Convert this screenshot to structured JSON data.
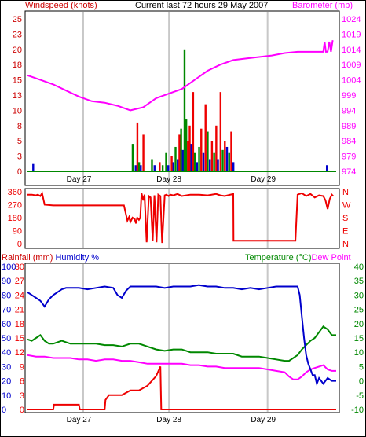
{
  "header": {
    "left_title": "Windspeed (knots)",
    "center_title": "Current last 72 hours 29 May 2007",
    "right_title": "Barometer (mb)"
  },
  "colors": {
    "windspeed_label": "#cc0000",
    "barometer": "#ff00ff",
    "wind_bars_red": "#ee0000",
    "wind_bars_green": "#008800",
    "wind_bars_blue": "#0000cc",
    "wind_base": "#008800",
    "direction": "#ee0000",
    "humidity": "#0000cc",
    "temperature": "#008800",
    "dewpoint": "#ff00ff",
    "rainfall": "#ee0000",
    "grid": "#c8c8c8",
    "frame": "#000000"
  },
  "day_labels": [
    "Day 27",
    "Day 28",
    "Day 29"
  ],
  "chart_data": [
    {
      "type": "line",
      "title": "",
      "ylabel_left": "Windspeed (knots)",
      "ylabel_right": "Barometer (mb)",
      "left_ticks": [
        "0",
        "3",
        "5",
        "8",
        "10",
        "13",
        "15",
        "18",
        "20",
        "23",
        "25"
      ],
      "right_ticks": [
        "974",
        "979",
        "984",
        "989",
        "994",
        "999",
        "1004",
        "1009",
        "1014",
        "1019",
        "1024"
      ],
      "ylim_left": [
        0,
        25
      ],
      "ylim_right": [
        974,
        1024
      ],
      "xlim_hours": [
        0,
        72
      ],
      "grid": "vertical",
      "barometer": {
        "name": "Barometer",
        "x": [
          0,
          3,
          6,
          9,
          12,
          15,
          18,
          21,
          24,
          27,
          30,
          33,
          36,
          39,
          42,
          45,
          48,
          51,
          54,
          57,
          60,
          63,
          66,
          68,
          69,
          69.3,
          69.6,
          70,
          70.4,
          70.8,
          71.2
        ],
        "y": [
          1005.5,
          1004,
          1002.5,
          1000.5,
          998.5,
          997,
          996.5,
          995.5,
          994,
          995,
          998,
          999.5,
          1001,
          1004,
          1007,
          1009,
          1010.5,
          1011,
          1011.5,
          1012,
          1012.8,
          1013.2,
          1013.2,
          1013.2,
          1013.2,
          1016.5,
          1013.2,
          1013.2,
          1016.5,
          1013.2,
          1017
        ]
      },
      "wind_bars": [
        {
          "hour": 1.3,
          "value": 1.2,
          "color": "blue"
        },
        {
          "hour": 24.5,
          "value": 4.5,
          "color": "green"
        },
        {
          "hour": 25.2,
          "value": 1.0,
          "color": "blue"
        },
        {
          "hour": 25.6,
          "value": 8.0,
          "color": "red"
        },
        {
          "hour": 26.0,
          "value": 1.5,
          "color": "green"
        },
        {
          "hour": 26.4,
          "value": 1.0,
          "color": "blue"
        },
        {
          "hour": 27.0,
          "value": 6.0,
          "color": "red"
        },
        {
          "hour": 29.0,
          "value": 2.0,
          "color": "green"
        },
        {
          "hour": 29.6,
          "value": 1.0,
          "color": "blue"
        },
        {
          "hour": 30.8,
          "value": 1.5,
          "color": "red"
        },
        {
          "hour": 31.5,
          "value": 1.0,
          "color": "green"
        },
        {
          "hour": 32.3,
          "value": 3.0,
          "color": "green"
        },
        {
          "hour": 32.8,
          "value": 1.0,
          "color": "blue"
        },
        {
          "hour": 33.6,
          "value": 2.5,
          "color": "red"
        },
        {
          "hour": 34.0,
          "value": 1.5,
          "color": "blue"
        },
        {
          "hour": 34.5,
          "value": 4.0,
          "color": "green"
        },
        {
          "hour": 35.0,
          "value": 2.0,
          "color": "blue"
        },
        {
          "hour": 35.4,
          "value": 6.0,
          "color": "red"
        },
        {
          "hour": 35.8,
          "value": 7.0,
          "color": "green"
        },
        {
          "hour": 36.2,
          "value": 3.5,
          "color": "blue"
        },
        {
          "hour": 36.6,
          "value": 20.0,
          "color": "green"
        },
        {
          "hour": 37.0,
          "value": 8.5,
          "color": "green"
        },
        {
          "hour": 37.4,
          "value": 5.0,
          "color": "red"
        },
        {
          "hour": 37.8,
          "value": 7.5,
          "color": "red"
        },
        {
          "hour": 38.2,
          "value": 4.5,
          "color": "blue"
        },
        {
          "hour": 38.6,
          "value": 13.0,
          "color": "red"
        },
        {
          "hour": 39.0,
          "value": 3.0,
          "color": "green"
        },
        {
          "hour": 39.5,
          "value": 1.5,
          "color": "blue"
        },
        {
          "hour": 40.0,
          "value": 4.0,
          "color": "green"
        },
        {
          "hour": 40.5,
          "value": 7.0,
          "color": "red"
        },
        {
          "hour": 41.0,
          "value": 3.0,
          "color": "blue"
        },
        {
          "hour": 41.5,
          "value": 11.0,
          "color": "red"
        },
        {
          "hour": 42.0,
          "value": 6.5,
          "color": "green"
        },
        {
          "hour": 42.5,
          "value": 2.0,
          "color": "blue"
        },
        {
          "hour": 43.0,
          "value": 5.0,
          "color": "red"
        },
        {
          "hour": 43.5,
          "value": 3.0,
          "color": "green"
        },
        {
          "hour": 44.0,
          "value": 7.5,
          "color": "red"
        },
        {
          "hour": 44.4,
          "value": 2.0,
          "color": "blue"
        },
        {
          "hour": 45.0,
          "value": 13.0,
          "color": "red"
        },
        {
          "hour": 45.5,
          "value": 3.5,
          "color": "green"
        },
        {
          "hour": 46.0,
          "value": 5.0,
          "color": "red"
        },
        {
          "hour": 46.5,
          "value": 4.0,
          "color": "blue"
        },
        {
          "hour": 47.0,
          "value": 3.0,
          "color": "green"
        },
        {
          "hour": 47.5,
          "value": 6.5,
          "color": "red"
        },
        {
          "hour": 48.0,
          "value": 1.5,
          "color": "blue"
        },
        {
          "hour": 69.8,
          "value": 1.0,
          "color": "blue"
        }
      ]
    },
    {
      "type": "line",
      "title": "",
      "left_ticks": [
        "360",
        "270",
        "180",
        "90",
        "0"
      ],
      "right_ticks": [
        "N",
        "W",
        "S",
        "E",
        "N"
      ],
      "ylim": [
        0,
        360
      ],
      "xlim_hours": [
        0,
        72
      ],
      "grid": "vertical",
      "direction": {
        "name": "Wind Direction",
        "x": [
          0,
          1,
          2,
          2.4,
          3,
          3.4,
          4,
          6,
          10,
          15,
          20,
          22,
          22.5,
          23,
          23.3,
          23.7,
          24,
          24.5,
          25,
          25.3,
          25.6,
          26,
          26.3,
          26.6,
          27,
          27.3,
          27.8,
          28.3,
          28.7,
          29.2,
          29.6,
          30.1,
          30.5,
          31,
          31.4,
          32,
          32.4,
          32.9,
          33.3,
          34,
          35,
          36,
          38,
          40,
          42,
          44,
          45,
          46,
          48,
          48.05,
          49,
          50,
          52,
          56,
          60,
          62,
          62.5,
          63,
          64,
          65,
          66,
          67,
          68,
          69,
          69.5,
          70,
          70.5,
          71,
          71.3
        ],
        "y": [
          340,
          340,
          335,
          340,
          330,
          350,
          270,
          265,
          265,
          265,
          265,
          265,
          265,
          200,
          160,
          185,
          150,
          180,
          170,
          140,
          180,
          165,
          180,
          350,
          300,
          340,
          10,
          330,
          320,
          20,
          335,
          10,
          340,
          330,
          5,
          335,
          340,
          330,
          340,
          335,
          345,
          330,
          340,
          340,
          335,
          345,
          335,
          330,
          345,
          20,
          20,
          20,
          20,
          20,
          20,
          20,
          20,
          340,
          350,
          330,
          345,
          320,
          335,
          330,
          300,
          240,
          310,
          340,
          330
        ]
      }
    },
    {
      "type": "line",
      "title": "",
      "ylabel_left": "Rainfall (mm)  Humidity %",
      "ylabel_right": "Temperature (°C)Dew Point",
      "left_ticks_rain": [
        "30",
        "27",
        "24",
        "21",
        "18",
        "15",
        "12",
        "9",
        "6",
        "3",
        "0"
      ],
      "left_ticks_humidity": [
        "100",
        "90",
        "80",
        "70",
        "60",
        "50",
        "40",
        "30",
        "20",
        "10",
        "0"
      ],
      "right_ticks": [
        "40",
        "35",
        "30",
        "25",
        "20",
        "15",
        "10",
        "5",
        "0",
        "-5",
        "-10"
      ],
      "ylim_rain": [
        0,
        30
      ],
      "ylim_humidity": [
        0,
        100
      ],
      "ylim_temperature": [
        -10,
        40
      ],
      "xlim_hours": [
        0,
        72
      ],
      "grid": "vertical",
      "humidity": {
        "name": "Humidity",
        "x": [
          0,
          1,
          2,
          3,
          4,
          5,
          6,
          7,
          8,
          9,
          10,
          12,
          14,
          16,
          18,
          20,
          21,
          22,
          23,
          24,
          26,
          28,
          30,
          32,
          34,
          36,
          38,
          40,
          42,
          44,
          46,
          48,
          50,
          52,
          54,
          56,
          58,
          60,
          61,
          62,
          63,
          63.5,
          64,
          64.5,
          65,
          65.5,
          66,
          66.5,
          67,
          67.5,
          68,
          69,
          70,
          71,
          72
        ],
        "y": [
          82,
          80,
          78,
          76,
          72,
          77,
          80,
          82,
          84,
          85,
          85,
          85,
          84,
          85,
          86,
          85,
          80,
          78,
          83,
          86,
          86,
          86,
          86,
          85,
          86,
          86,
          86,
          87,
          86,
          86,
          85,
          85,
          84,
          85,
          84,
          85,
          86,
          86,
          86,
          86,
          86,
          80,
          65,
          50,
          38,
          32,
          28,
          24,
          24,
          18,
          22,
          18,
          22,
          20,
          20
        ]
      },
      "temperature": {
        "name": "Temperature",
        "x": [
          0,
          1,
          2,
          3,
          4,
          5,
          6,
          8,
          10,
          12,
          14,
          16,
          18,
          20,
          22,
          24,
          26,
          28,
          30,
          32,
          34,
          36,
          38,
          40,
          42,
          44,
          46,
          48,
          50,
          52,
          54,
          56,
          58,
          60,
          61,
          62,
          63,
          63.5,
          64,
          65,
          66,
          67,
          68,
          69,
          70,
          71,
          72
        ],
        "y": [
          14.5,
          14,
          15,
          16,
          14,
          13,
          13,
          14,
          13,
          13,
          13,
          13,
          12.5,
          12.5,
          12,
          13,
          13,
          12,
          11,
          10.5,
          11,
          11,
          10,
          10,
          10,
          9.5,
          9.5,
          9.5,
          8.5,
          8.5,
          8.5,
          8,
          7.5,
          7,
          7,
          8,
          9,
          10,
          11,
          12.5,
          14,
          15,
          17,
          19,
          18,
          16,
          16
        ]
      },
      "dewpoint": {
        "name": "Dew Point",
        "x": [
          0,
          2,
          4,
          6,
          8,
          10,
          12,
          14,
          16,
          18,
          20,
          22,
          24,
          26,
          28,
          30,
          32,
          34,
          36,
          38,
          40,
          42,
          44,
          46,
          48,
          50,
          52,
          54,
          56,
          58,
          60,
          61,
          62,
          63,
          64,
          65,
          66,
          67,
          68,
          69,
          70,
          71,
          72
        ],
        "y": [
          9,
          8.5,
          8.5,
          8,
          8,
          8,
          7.5,
          7.5,
          7,
          7.5,
          7.5,
          7,
          7,
          6.5,
          6,
          6,
          6,
          6,
          6,
          5.5,
          5.5,
          5,
          5,
          4.5,
          4.5,
          4.5,
          4.5,
          4.5,
          4,
          3.5,
          3,
          1.5,
          0.5,
          0.5,
          1.5,
          3,
          4,
          4.5,
          5,
          5.5,
          4,
          3.5,
          3.5
        ]
      },
      "rainfall": {
        "name": "Rainfall",
        "x": [
          0,
          6,
          6.2,
          12,
          12.2,
          18,
          18.2,
          19,
          20,
          22,
          24,
          26,
          28,
          30,
          31,
          31.2,
          72
        ],
        "y": [
          0,
          0,
          1,
          1,
          0,
          0,
          2,
          3,
          3,
          3,
          4,
          4,
          5,
          7,
          9,
          0,
          0
        ]
      }
    }
  ]
}
